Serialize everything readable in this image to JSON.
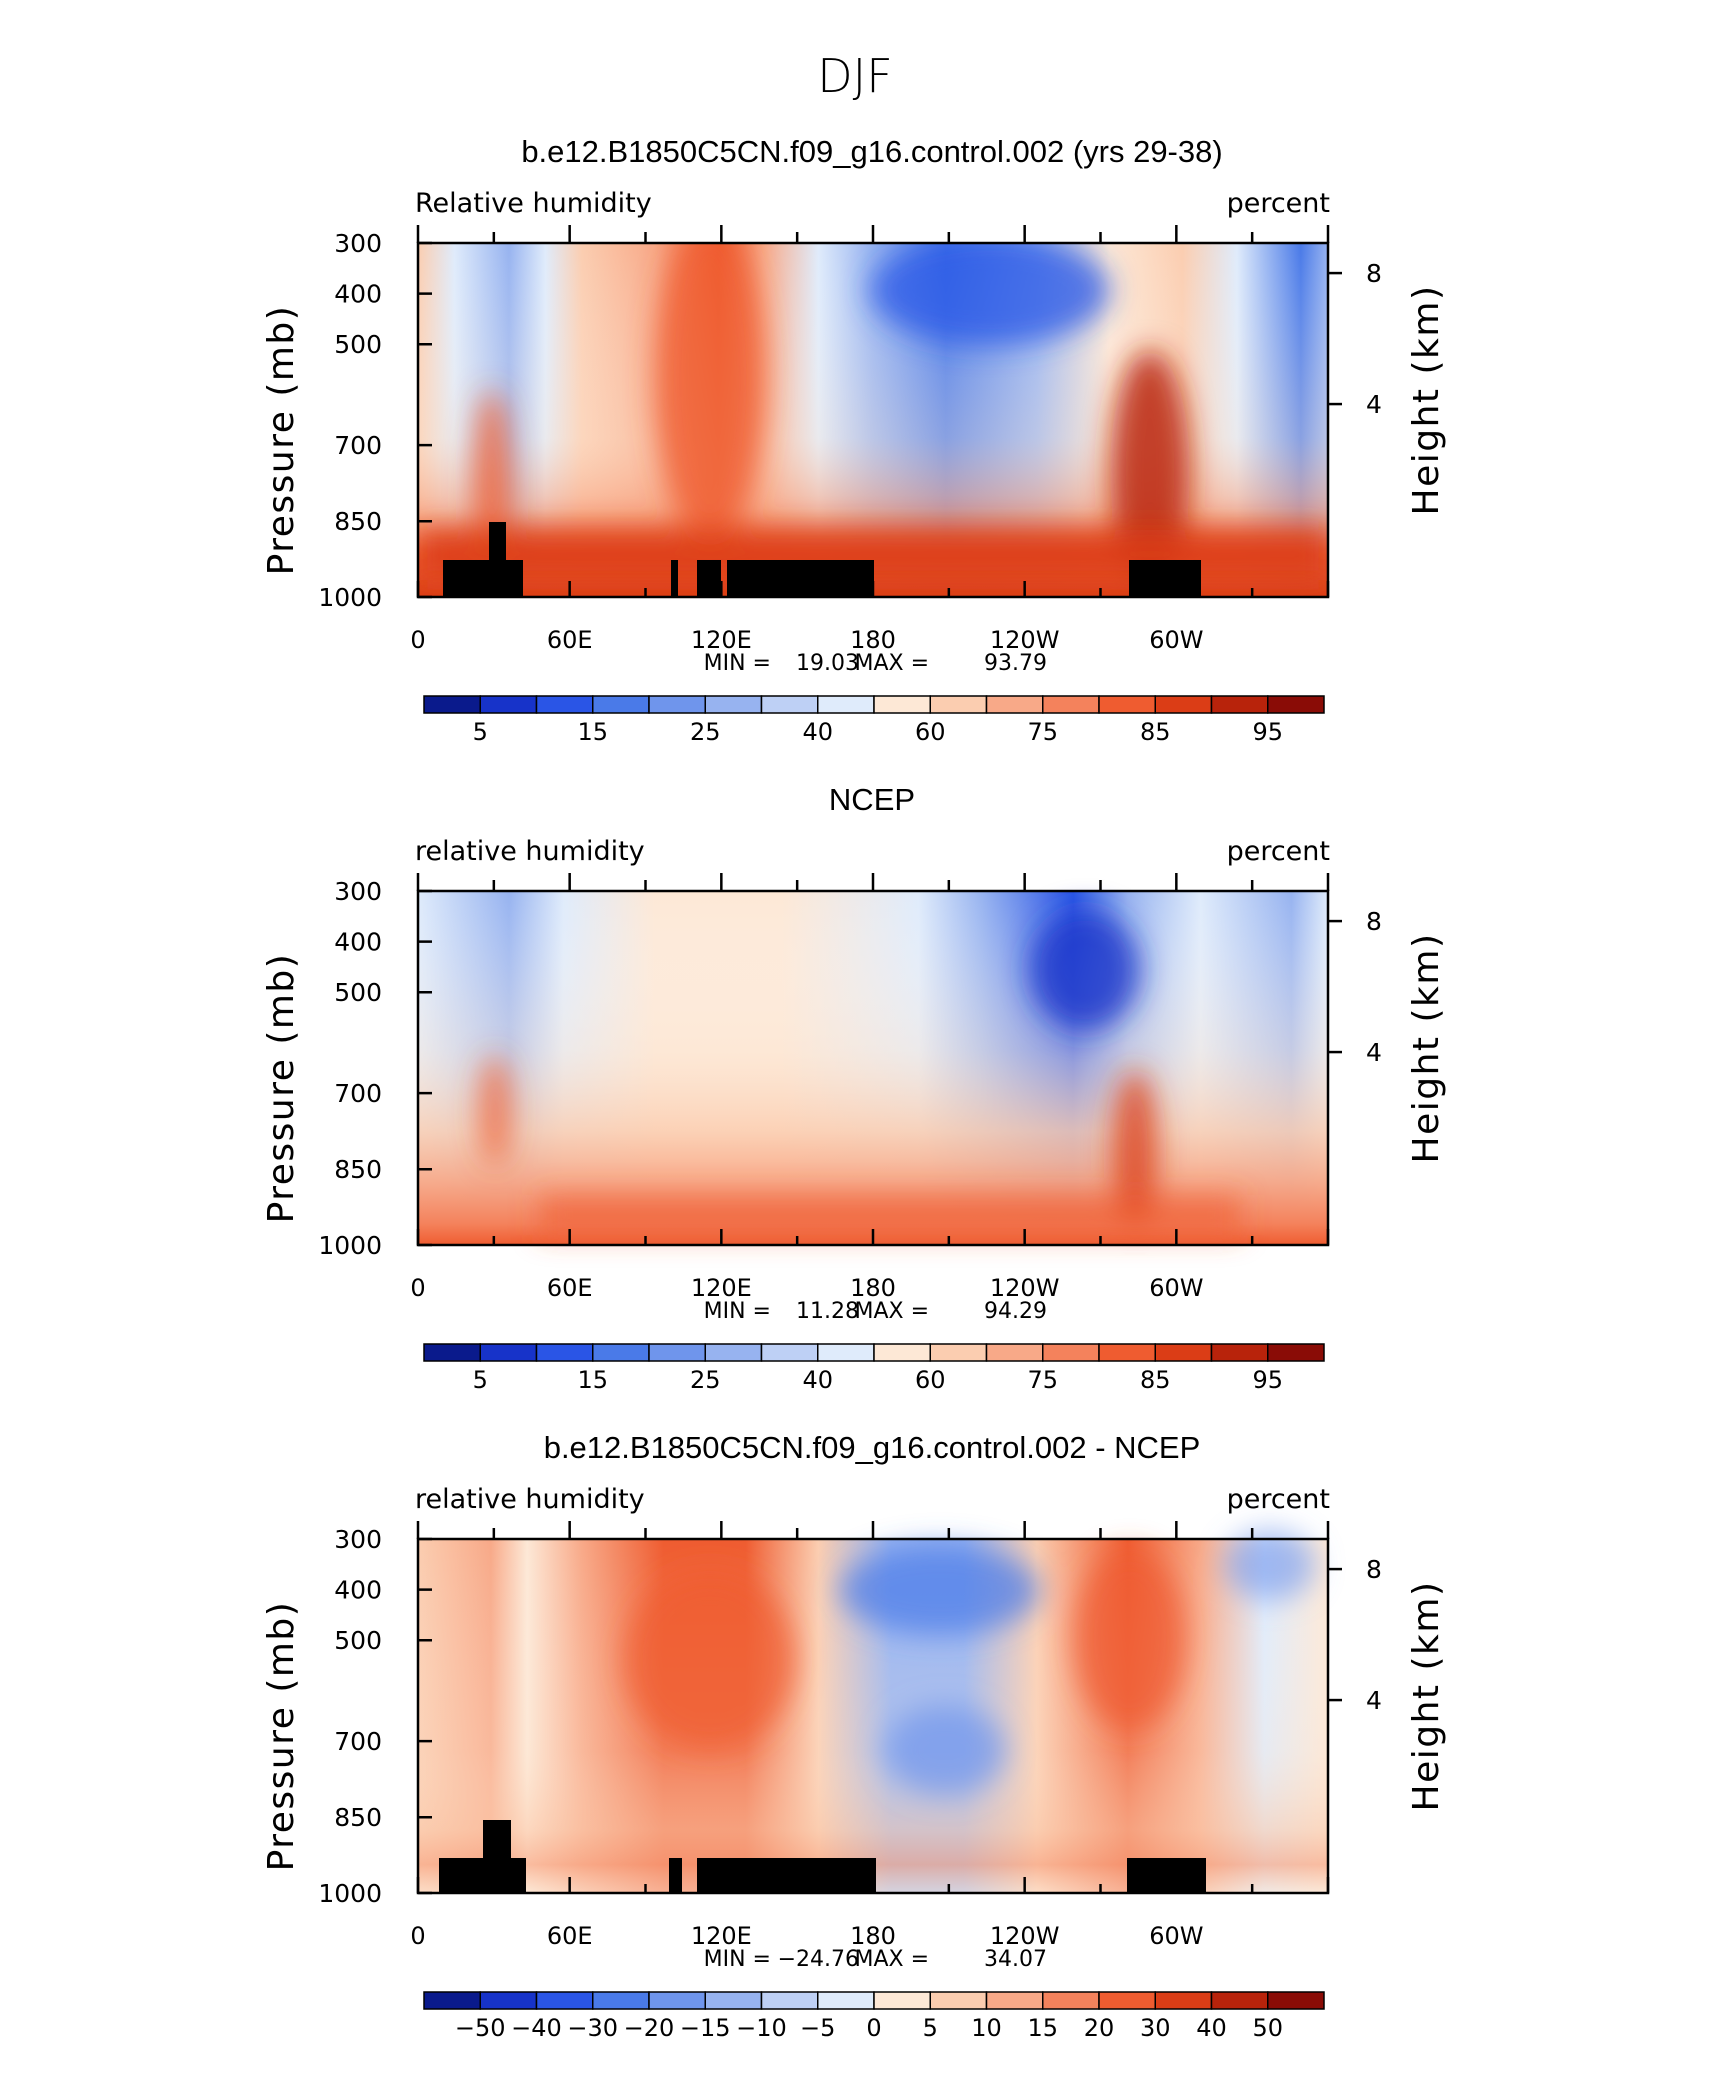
{
  "figure_title": "DJF",
  "chart_data": [
    {
      "type": "heatmap",
      "title": "b.e12.B1850C5CN.f09_g16.control.002 (yrs 29-38)",
      "left_label": "Relative humidity",
      "right_label": "percent",
      "ylabel": "Pressure (mb)",
      "ylabel_right": "Height (km)",
      "y_ticks": [
        "300",
        "400",
        "500",
        "700",
        "850",
        "1000"
      ],
      "y_ticks_right": [
        "8",
        "4"
      ],
      "x_ticks": [
        "0",
        "60E",
        "120E",
        "180",
        "120W",
        "60W"
      ],
      "stats": {
        "min_label": "MIN =",
        "min": "19.03",
        "max_label": "MAX =",
        "max": "93.79"
      },
      "colorbar_labels": [
        "5",
        "15",
        "25",
        "40",
        "60",
        "75",
        "85",
        "95"
      ],
      "masked_topography": true
    },
    {
      "type": "heatmap",
      "title": "NCEP",
      "left_label": "relative humidity",
      "right_label": "percent",
      "ylabel": "Pressure (mb)",
      "ylabel_right": "Height (km)",
      "y_ticks": [
        "300",
        "400",
        "500",
        "700",
        "850",
        "1000"
      ],
      "y_ticks_right": [
        "8",
        "4"
      ],
      "x_ticks": [
        "0",
        "60E",
        "120E",
        "180",
        "120W",
        "60W"
      ],
      "stats": {
        "min_label": "MIN =",
        "min": "11.28",
        "max_label": "MAX =",
        "max": "94.29"
      },
      "colorbar_labels": [
        "5",
        "15",
        "25",
        "40",
        "60",
        "75",
        "85",
        "95"
      ],
      "masked_topography": false
    },
    {
      "type": "heatmap",
      "title": "b.e12.B1850C5CN.f09_g16.control.002 - NCEP",
      "left_label": "relative humidity",
      "right_label": "percent",
      "ylabel": "Pressure (mb)",
      "ylabel_right": "Height (km)",
      "y_ticks": [
        "300",
        "400",
        "500",
        "700",
        "850",
        "1000"
      ],
      "y_ticks_right": [
        "8",
        "4"
      ],
      "x_ticks": [
        "0",
        "60E",
        "120E",
        "180",
        "120W",
        "60W"
      ],
      "stats": {
        "min_label": "MIN =",
        "min": "−24.76",
        "max_label": "MAX =",
        "max": "34.07"
      },
      "colorbar_labels": [
        "−50",
        "−40",
        "−30",
        "−20",
        "−15",
        "−10",
        "−5",
        "0",
        "5",
        "10",
        "15",
        "20",
        "30",
        "40",
        "50"
      ],
      "masked_topography": true
    }
  ],
  "colors": {
    "colorbar_16": [
      "#0a1a8c",
      "#1733c9",
      "#2a55e6",
      "#4a7ae8",
      "#6f95ec",
      "#97b3f0",
      "#bed0f5",
      "#dfebfb",
      "#fde8d6",
      "#fbcdb0",
      "#f8a988",
      "#f4825c",
      "#ef5c30",
      "#db3d16",
      "#b8230b",
      "#8a0c06"
    ],
    "topography": "#000000"
  }
}
